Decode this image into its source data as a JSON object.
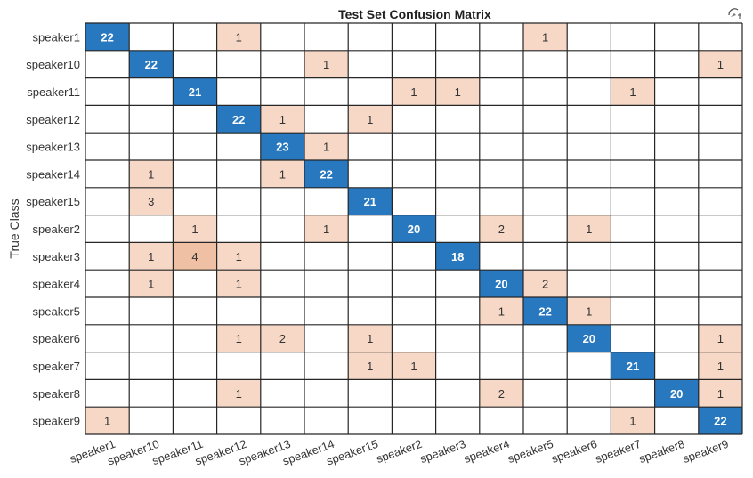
{
  "chart_data": {
    "type": "heatmap",
    "title": "Test Set Confusion Matrix",
    "ylabel": "True Class",
    "xlabel": "",
    "row_labels": [
      "speaker1",
      "speaker10",
      "speaker11",
      "speaker12",
      "speaker13",
      "speaker14",
      "speaker15",
      "speaker2",
      "speaker3",
      "speaker4",
      "speaker5",
      "speaker6",
      "speaker7",
      "speaker8",
      "speaker9"
    ],
    "col_labels": [
      "speaker1",
      "speaker10",
      "speaker11",
      "speaker12",
      "speaker13",
      "speaker14",
      "speaker15",
      "speaker2",
      "speaker3",
      "speaker4",
      "speaker5",
      "speaker6",
      "speaker7",
      "speaker8",
      "speaker9"
    ],
    "matrix": [
      [
        22,
        0,
        0,
        1,
        0,
        0,
        0,
        0,
        0,
        0,
        1,
        0,
        0,
        0,
        0
      ],
      [
        0,
        22,
        0,
        0,
        0,
        1,
        0,
        0,
        0,
        0,
        0,
        0,
        0,
        0,
        1
      ],
      [
        0,
        0,
        21,
        0,
        0,
        0,
        0,
        1,
        1,
        0,
        0,
        0,
        1,
        0,
        0
      ],
      [
        0,
        0,
        0,
        22,
        1,
        0,
        1,
        0,
        0,
        0,
        0,
        0,
        0,
        0,
        0
      ],
      [
        0,
        0,
        0,
        0,
        23,
        1,
        0,
        0,
        0,
        0,
        0,
        0,
        0,
        0,
        0
      ],
      [
        0,
        1,
        0,
        0,
        1,
        22,
        0,
        0,
        0,
        0,
        0,
        0,
        0,
        0,
        0
      ],
      [
        0,
        3,
        0,
        0,
        0,
        0,
        21,
        0,
        0,
        0,
        0,
        0,
        0,
        0,
        0
      ],
      [
        0,
        0,
        1,
        0,
        0,
        1,
        0,
        20,
        0,
        2,
        0,
        1,
        0,
        0,
        0
      ],
      [
        0,
        1,
        4,
        1,
        0,
        0,
        0,
        0,
        18,
        0,
        0,
        0,
        0,
        0,
        0
      ],
      [
        0,
        1,
        0,
        1,
        0,
        0,
        0,
        0,
        0,
        20,
        2,
        0,
        0,
        0,
        0
      ],
      [
        0,
        0,
        0,
        0,
        0,
        0,
        0,
        0,
        0,
        1,
        22,
        1,
        0,
        0,
        0
      ],
      [
        0,
        0,
        0,
        1,
        2,
        0,
        1,
        0,
        0,
        0,
        0,
        20,
        0,
        0,
        1
      ],
      [
        0,
        0,
        0,
        0,
        0,
        0,
        1,
        1,
        0,
        0,
        0,
        0,
        21,
        0,
        1
      ],
      [
        0,
        0,
        0,
        1,
        0,
        0,
        0,
        0,
        0,
        2,
        0,
        0,
        0,
        20,
        1
      ],
      [
        1,
        0,
        0,
        0,
        0,
        0,
        0,
        0,
        0,
        0,
        0,
        0,
        1,
        0,
        22
      ]
    ],
    "colors": {
      "diagonal": "#2878c0",
      "off_diagonal_light": "#f7d8c6",
      "off_diagonal_dark": "#f0c0a4",
      "empty": "#ffffff",
      "grid": "#262626"
    }
  },
  "toolbar": {
    "icon": "axes-interaction-icon"
  }
}
